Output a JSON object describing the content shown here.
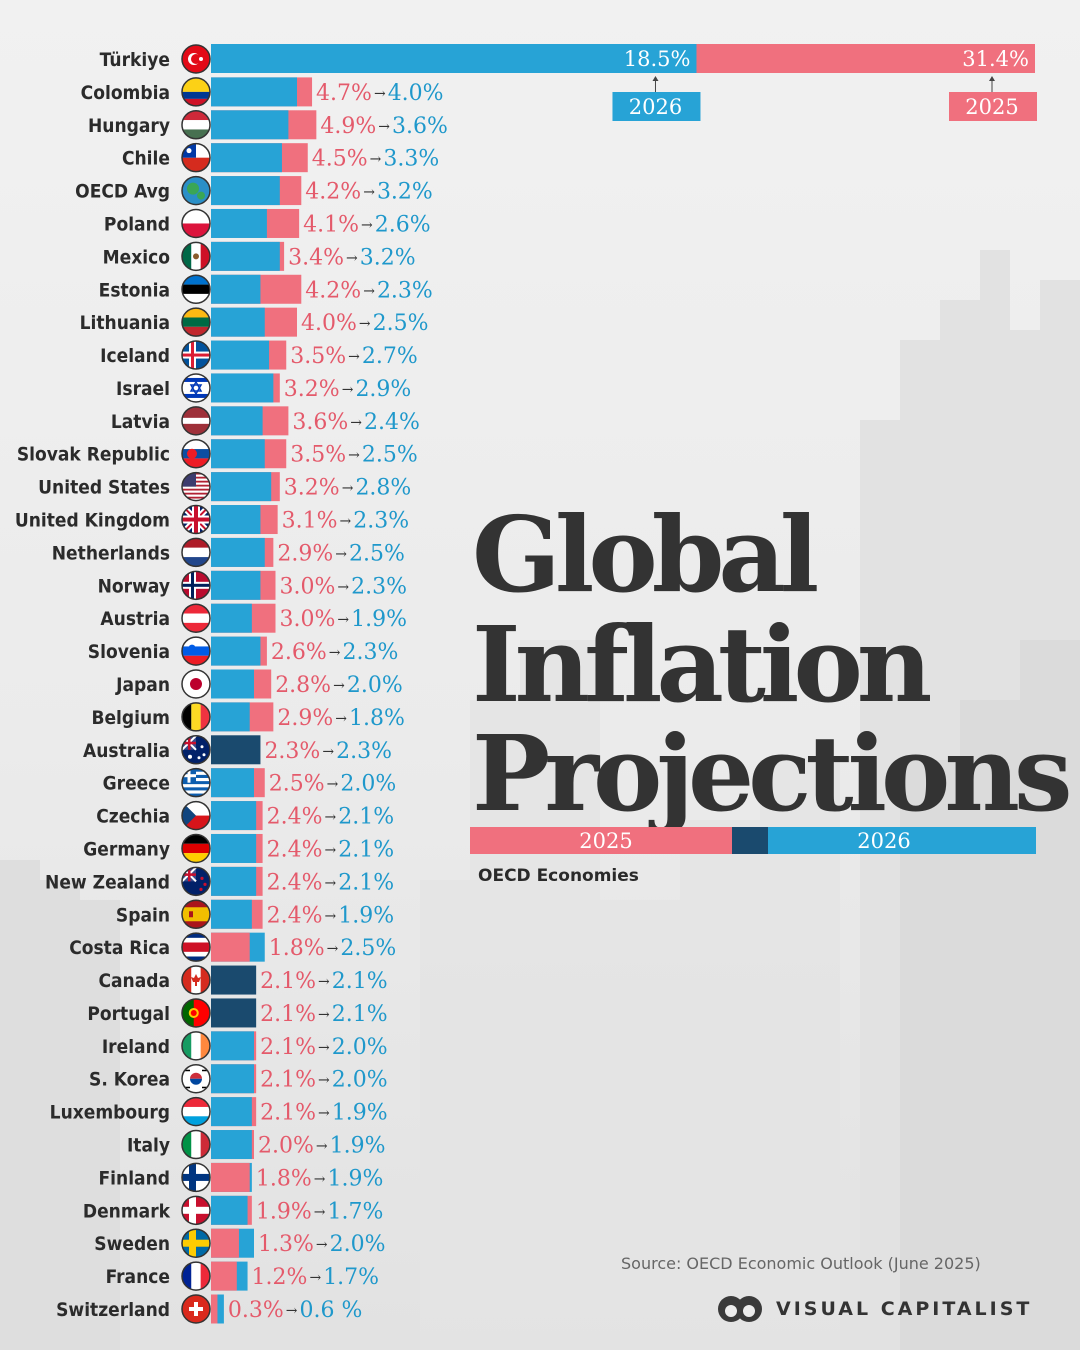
{
  "title": {
    "line1": "Global",
    "line2": "Inflation",
    "line3": "Projections"
  },
  "subtitle": "OECD Economies",
  "legend": {
    "label_2025": "2025",
    "label_2026": "2026"
  },
  "source": "Source: OECD Economic Outlook (June 2025)",
  "brand": "VISUAL CAPITALIST",
  "colors": {
    "y2025": "#f0707e",
    "y2026": "#27a3d6",
    "equal": "#1a4a6e",
    "text2025": "#e45a6b",
    "text2026": "#1f98cb",
    "label": "#2b2b2b"
  },
  "chart_data": {
    "type": "bar",
    "title": "Global Inflation Projections",
    "subtitle": "OECD Economies",
    "series_names": [
      "2025",
      "2026"
    ],
    "featured": {
      "label_2026": "18.5%",
      "label_2025": "31.4%",
      "legend_2026": "2026",
      "legend_2025": "2025"
    },
    "rows": [
      {
        "country": "Türkiye",
        "flag": "turkey-flag",
        "v2025": 31.4,
        "v2026": 18.5,
        "label_2025": "31.4%",
        "label_2026": "18.5%",
        "arrow": ""
      },
      {
        "country": "Colombia",
        "flag": "colombia-flag",
        "v2025": 4.7,
        "v2026": 4.0,
        "label_2025": "4.7%",
        "label_2026": "4.0%",
        "arrow": "→"
      },
      {
        "country": "Hungary",
        "flag": "hungary-flag",
        "v2025": 4.9,
        "v2026": 3.6,
        "label_2025": "4.9%",
        "label_2026": "3.6%",
        "arrow": "→"
      },
      {
        "country": "Chile",
        "flag": "chile-flag",
        "v2025": 4.5,
        "v2026": 3.3,
        "label_2025": "4.5%",
        "label_2026": "3.3%",
        "arrow": "→"
      },
      {
        "country": "OECD Avg",
        "flag": "globe-icon",
        "v2025": 4.2,
        "v2026": 3.2,
        "label_2025": "4.2%",
        "label_2026": "3.2%",
        "arrow": "→"
      },
      {
        "country": "Poland",
        "flag": "poland-flag",
        "v2025": 4.1,
        "v2026": 2.6,
        "label_2025": "4.1%",
        "label_2026": "2.6%",
        "arrow": "→"
      },
      {
        "country": "Mexico",
        "flag": "mexico-flag",
        "v2025": 3.4,
        "v2026": 3.2,
        "label_2025": "3.4%",
        "label_2026": "3.2%",
        "arrow": "→"
      },
      {
        "country": "Estonia",
        "flag": "estonia-flag",
        "v2025": 4.2,
        "v2026": 2.3,
        "label_2025": "4.2%",
        "label_2026": "2.3%",
        "arrow": "→"
      },
      {
        "country": "Lithuania",
        "flag": "lithuania-flag",
        "v2025": 4.0,
        "v2026": 2.5,
        "label_2025": "4.0%",
        "label_2026": "2.5%",
        "arrow": "→"
      },
      {
        "country": "Iceland",
        "flag": "iceland-flag",
        "v2025": 3.5,
        "v2026": 2.7,
        "label_2025": "3.5%",
        "label_2026": "2.7%",
        "arrow": "→"
      },
      {
        "country": "Israel",
        "flag": "israel-flag",
        "v2025": 3.2,
        "v2026": 2.9,
        "label_2025": "3.2%",
        "label_2026": "2.9%",
        "arrow": "→"
      },
      {
        "country": "Latvia",
        "flag": "latvia-flag",
        "v2025": 3.6,
        "v2026": 2.4,
        "label_2025": "3.6%",
        "label_2026": "2.4%",
        "arrow": "→"
      },
      {
        "country": "Slovak Republic",
        "flag": "slovakia-flag",
        "v2025": 3.5,
        "v2026": 2.5,
        "label_2025": "3.5%",
        "label_2026": "2.5%",
        "arrow": "→"
      },
      {
        "country": "United States",
        "flag": "usa-flag",
        "v2025": 3.2,
        "v2026": 2.8,
        "label_2025": "3.2%",
        "label_2026": "2.8%",
        "arrow": "→"
      },
      {
        "country": "United Kingdom",
        "flag": "uk-flag",
        "v2025": 3.1,
        "v2026": 2.3,
        "label_2025": "3.1%",
        "label_2026": "2.3%",
        "arrow": "→"
      },
      {
        "country": "Netherlands",
        "flag": "netherlands-flag",
        "v2025": 2.9,
        "v2026": 2.5,
        "label_2025": "2.9%",
        "label_2026": "2.5%",
        "arrow": "→"
      },
      {
        "country": "Norway",
        "flag": "norway-flag",
        "v2025": 3.0,
        "v2026": 2.3,
        "label_2025": "3.0%",
        "label_2026": "2.3%",
        "arrow": "→"
      },
      {
        "country": "Austria",
        "flag": "austria-flag",
        "v2025": 3.0,
        "v2026": 1.9,
        "label_2025": "3.0%",
        "label_2026": "1.9%",
        "arrow": "→"
      },
      {
        "country": "Slovenia",
        "flag": "slovenia-flag",
        "v2025": 2.6,
        "v2026": 2.3,
        "label_2025": "2.6%",
        "label_2026": "2.3%",
        "arrow": "→"
      },
      {
        "country": "Japan",
        "flag": "japan-flag",
        "v2025": 2.8,
        "v2026": 2.0,
        "label_2025": "2.8%",
        "label_2026": "2.0%",
        "arrow": "→"
      },
      {
        "country": "Belgium",
        "flag": "belgium-flag",
        "v2025": 2.9,
        "v2026": 1.8,
        "label_2025": "2.9%",
        "label_2026": "1.8%",
        "arrow": "→"
      },
      {
        "country": "Australia",
        "flag": "australia-flag",
        "v2025": 2.3,
        "v2026": 2.3,
        "label_2025": "2.3%",
        "label_2026": "2.3%",
        "arrow": "→"
      },
      {
        "country": "Greece",
        "flag": "greece-flag",
        "v2025": 2.5,
        "v2026": 2.0,
        "label_2025": "2.5%",
        "label_2026": "2.0%",
        "arrow": "→"
      },
      {
        "country": "Czechia",
        "flag": "czechia-flag",
        "v2025": 2.4,
        "v2026": 2.1,
        "label_2025": "2.4%",
        "label_2026": "2.1%",
        "arrow": "→"
      },
      {
        "country": "Germany",
        "flag": "germany-flag",
        "v2025": 2.4,
        "v2026": 2.1,
        "label_2025": "2.4%",
        "label_2026": "2.1%",
        "arrow": "→"
      },
      {
        "country": "New Zealand",
        "flag": "new-zealand-flag",
        "v2025": 2.4,
        "v2026": 2.1,
        "label_2025": "2.4%",
        "label_2026": "2.1%",
        "arrow": "→"
      },
      {
        "country": "Spain",
        "flag": "spain-flag",
        "v2025": 2.4,
        "v2026": 1.9,
        "label_2025": "2.4%",
        "label_2026": "1.9%",
        "arrow": "→"
      },
      {
        "country": "Costa Rica",
        "flag": "costa-rica-flag",
        "v2025": 1.8,
        "v2026": 2.5,
        "label_2025": "1.8%",
        "label_2026": "2.5%",
        "arrow": "→"
      },
      {
        "country": "Canada",
        "flag": "canada-flag",
        "v2025": 2.1,
        "v2026": 2.1,
        "label_2025": "2.1%",
        "label_2026": "2.1%",
        "arrow": "→"
      },
      {
        "country": "Portugal",
        "flag": "portugal-flag",
        "v2025": 2.1,
        "v2026": 2.1,
        "label_2025": "2.1%",
        "label_2026": "2.1%",
        "arrow": "→"
      },
      {
        "country": "Ireland",
        "flag": "ireland-flag",
        "v2025": 2.1,
        "v2026": 2.0,
        "label_2025": "2.1%",
        "label_2026": "2.0%",
        "arrow": "→"
      },
      {
        "country": "S. Korea",
        "flag": "south-korea-flag",
        "v2025": 2.1,
        "v2026": 2.0,
        "label_2025": "2.1%",
        "label_2026": "2.0%",
        "arrow": "→"
      },
      {
        "country": "Luxembourg",
        "flag": "luxembourg-flag",
        "v2025": 2.1,
        "v2026": 1.9,
        "label_2025": "2.1%",
        "label_2026": "1.9%",
        "arrow": "→"
      },
      {
        "country": "Italy",
        "flag": "italy-flag",
        "v2025": 2.0,
        "v2026": 1.9,
        "label_2025": "2.0%",
        "label_2026": "1.9%",
        "arrow": "→"
      },
      {
        "country": "Finland",
        "flag": "finland-flag",
        "v2025": 1.8,
        "v2026": 1.9,
        "label_2025": "1.8%",
        "label_2026": "1.9%",
        "arrow": "→"
      },
      {
        "country": "Denmark",
        "flag": "denmark-flag",
        "v2025": 1.9,
        "v2026": 1.7,
        "label_2025": "1.9%",
        "label_2026": "1.7%",
        "arrow": "→"
      },
      {
        "country": "Sweden",
        "flag": "sweden-flag",
        "v2025": 1.3,
        "v2026": 2.0,
        "label_2025": "1.3%",
        "label_2026": "2.0%",
        "arrow": "→"
      },
      {
        "country": "France",
        "flag": "france-flag",
        "v2025": 1.2,
        "v2026": 1.7,
        "label_2025": "1.2%",
        "label_2026": "1.7%",
        "arrow": "→"
      },
      {
        "country": "Switzerland",
        "flag": "switzerland-flag",
        "v2025": 0.3,
        "v2026": 0.6,
        "label_2025": "0.3%",
        "label_2026": "0.6 %",
        "arrow": "→"
      }
    ]
  }
}
